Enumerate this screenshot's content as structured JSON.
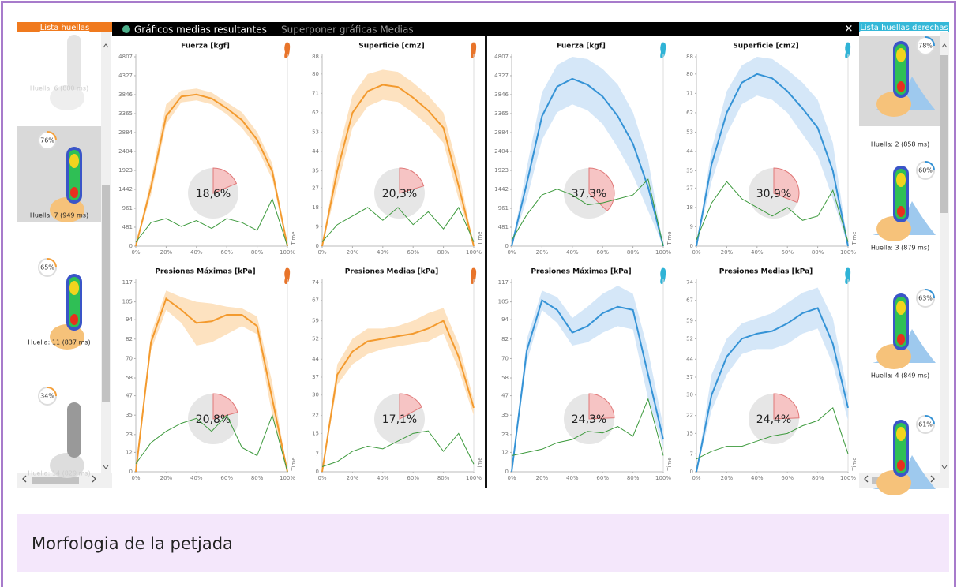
{
  "toolbar": {
    "title": "Gráficos medias resultantes",
    "option": "Superponer gráficas Medias",
    "close": "✕"
  },
  "left_panel": {
    "title": "Lista huellas",
    "items": [
      {
        "label": "Huella: 6 (880 ms)"
      },
      {
        "percent": "76%",
        "label": "Huella: 7 (949 ms)"
      },
      {
        "percent": "65%",
        "label": "Huella: 11 (837 ms)"
      },
      {
        "percent": "34%",
        "label": "Huella: 14 (829 ms)"
      }
    ]
  },
  "right_panel": {
    "title": "Lista huellas derechas",
    "items": [
      {
        "percent": "78%",
        "label": "Huella: 2 (858 ms)"
      },
      {
        "percent": "60%",
        "label": "Huella: 3 (879 ms)"
      },
      {
        "percent": "63%",
        "label": "Huella: 4 (849 ms)"
      },
      {
        "percent": "61%"
      }
    ]
  },
  "caption": "Morfologia de la petjada",
  "chart_data": [
    {
      "type": "line",
      "title": "Fuerza  [kgf]",
      "xlabel": "Time",
      "x": [
        0,
        10,
        20,
        30,
        40,
        50,
        60,
        70,
        80,
        90,
        100
      ],
      "xlim": [
        0,
        100
      ],
      "xticks": [
        {
          "value": 0,
          "label": "0%"
        },
        {
          "value": 20,
          "label": "20%"
        },
        {
          "value": 40,
          "label": "40%"
        },
        {
          "value": 60,
          "label": "60%"
        },
        {
          "value": 80,
          "label": "80%"
        },
        {
          "value": 100,
          "label": "100%"
        }
      ],
      "ylim": [
        0,
        4807
      ],
      "yticks": [
        0,
        481,
        961,
        1442,
        1923,
        2404,
        2884,
        3365,
        3846,
        4327,
        4807
      ],
      "band": {
        "color": "#fde2c0",
        "upper": [
          0,
          1700,
          3600,
          3950,
          4000,
          3900,
          3650,
          3400,
          2900,
          2100,
          0
        ],
        "lower": [
          0,
          1300,
          3100,
          3650,
          3700,
          3600,
          3350,
          3000,
          2500,
          1700,
          0
        ]
      },
      "series": [
        {
          "color": "#f39a2e",
          "values": [
            0,
            1500,
            3300,
            3800,
            3850,
            3750,
            3500,
            3200,
            2700,
            1900,
            0
          ]
        },
        {
          "color": "#3d9a3d",
          "values": [
            100,
            600,
            700,
            500,
            650,
            450,
            700,
            600,
            400,
            1200,
            0
          ]
        }
      ],
      "percent": {
        "value": 18.6,
        "label": "18,6%"
      },
      "foot_color": "#e8742a"
    },
    {
      "type": "line",
      "title": "Superficie  [cm2]",
      "xlabel": "Time",
      "x": [
        0,
        10,
        20,
        30,
        40,
        50,
        60,
        70,
        80,
        90,
        100
      ],
      "xlim": [
        0,
        100
      ],
      "xticks": [
        {
          "value": 0,
          "label": "0%"
        },
        {
          "value": 20,
          "label": "20%"
        },
        {
          "value": 40,
          "label": "40%"
        },
        {
          "value": 60,
          "label": "60%"
        },
        {
          "value": 80,
          "label": "80%"
        },
        {
          "value": 100,
          "label": "100%"
        }
      ],
      "ylim": [
        0,
        88
      ],
      "yticks": [
        0,
        9,
        18,
        27,
        35,
        44,
        53,
        62,
        71,
        80,
        88
      ],
      "band": {
        "color": "#fde2c0",
        "upper": [
          0,
          42,
          70,
          80,
          82,
          81,
          76,
          70,
          62,
          35,
          0
        ],
        "lower": [
          0,
          28,
          55,
          65,
          68,
          67,
          62,
          56,
          48,
          22,
          0
        ]
      },
      "series": [
        {
          "color": "#f39a2e",
          "values": [
            0,
            35,
            62,
            72,
            75,
            74,
            69,
            63,
            55,
            28,
            0
          ]
        },
        {
          "color": "#3d9a3d",
          "values": [
            2,
            10,
            14,
            18,
            12,
            18,
            10,
            16,
            8,
            18,
            2
          ]
        }
      ],
      "percent": {
        "value": 20.3,
        "label": "20,3%"
      },
      "foot_color": "#e8742a"
    },
    {
      "type": "line",
      "title": "Fuerza  [kgf]",
      "xlabel": "Time",
      "x": [
        0,
        10,
        20,
        30,
        40,
        50,
        60,
        70,
        80,
        90,
        100
      ],
      "xlim": [
        0,
        100
      ],
      "xticks": [
        {
          "value": 0,
          "label": "0%"
        },
        {
          "value": 20,
          "label": "20%"
        },
        {
          "value": 40,
          "label": "40%"
        },
        {
          "value": 60,
          "label": "60%"
        },
        {
          "value": 80,
          "label": "80%"
        },
        {
          "value": 100,
          "label": "100%"
        }
      ],
      "ylim": [
        0,
        4807
      ],
      "yticks": [
        0,
        481,
        961,
        1442,
        1923,
        2404,
        2884,
        3365,
        3846,
        4327,
        4807
      ],
      "band": {
        "color": "#d5e7f8",
        "upper": [
          0,
          2000,
          3900,
          4600,
          4807,
          4750,
          4500,
          4100,
          3400,
          2200,
          0
        ],
        "lower": [
          0,
          1200,
          2700,
          3400,
          3600,
          3450,
          3100,
          2500,
          1800,
          900,
          0
        ]
      },
      "series": [
        {
          "color": "#3593d6",
          "values": [
            0,
            1600,
            3300,
            4050,
            4250,
            4100,
            3800,
            3300,
            2600,
            1500,
            0
          ]
        },
        {
          "color": "#3d9a3d",
          "values": [
            150,
            800,
            1300,
            1450,
            1300,
            1050,
            1100,
            1200,
            1300,
            1700,
            0
          ]
        }
      ],
      "percent": {
        "value": 37.3,
        "label": "37,3%"
      },
      "foot_color": "#2fb3d6"
    },
    {
      "type": "line",
      "title": "Superficie  [cm2]",
      "xlabel": "Time",
      "x": [
        0,
        10,
        20,
        30,
        40,
        50,
        60,
        70,
        80,
        90,
        100
      ],
      "xlim": [
        0,
        100
      ],
      "xticks": [
        {
          "value": 0,
          "label": "0%"
        },
        {
          "value": 20,
          "label": "20%"
        },
        {
          "value": 40,
          "label": "40%"
        },
        {
          "value": 60,
          "label": "60%"
        },
        {
          "value": 80,
          "label": "80%"
        },
        {
          "value": 100,
          "label": "100%"
        }
      ],
      "ylim": [
        0,
        88
      ],
      "yticks": [
        0,
        9,
        18,
        27,
        35,
        44,
        53,
        62,
        71,
        80,
        88
      ],
      "band": {
        "color": "#d5e7f8",
        "upper": [
          0,
          45,
          72,
          84,
          88,
          87,
          82,
          76,
          68,
          48,
          0
        ],
        "lower": [
          0,
          30,
          52,
          66,
          70,
          68,
          62,
          52,
          42,
          22,
          0
        ]
      },
      "series": [
        {
          "color": "#3593d6",
          "values": [
            0,
            38,
            62,
            76,
            80,
            78,
            72,
            64,
            55,
            35,
            0
          ]
        },
        {
          "color": "#3d9a3d",
          "values": [
            3,
            20,
            30,
            22,
            18,
            14,
            18,
            12,
            14,
            26,
            2
          ]
        }
      ],
      "percent": {
        "value": 30.9,
        "label": "30,9%"
      },
      "foot_color": "#2fb3d6"
    },
    {
      "type": "line",
      "title": "Presiones Máximas  [kPa]",
      "xlabel": "Time",
      "x": [
        0,
        10,
        20,
        30,
        40,
        50,
        60,
        70,
        80,
        90,
        100
      ],
      "xlim": [
        0,
        100
      ],
      "xticks": [
        {
          "value": 0,
          "label": "0%"
        },
        {
          "value": 20,
          "label": "20%"
        },
        {
          "value": 40,
          "label": "40%"
        },
        {
          "value": 60,
          "label": "60%"
        },
        {
          "value": 80,
          "label": "80%"
        },
        {
          "value": 100,
          "label": "100%"
        }
      ],
      "ylim": [
        0,
        117
      ],
      "yticks": [
        0,
        12,
        23,
        35,
        47,
        58,
        70,
        82,
        94,
        105,
        117
      ],
      "band": {
        "color": "#fde2c0",
        "upper": [
          0,
          85,
          112,
          108,
          105,
          104,
          102,
          101,
          96,
          55,
          0
        ],
        "lower": [
          0,
          75,
          100,
          92,
          78,
          80,
          85,
          90,
          85,
          35,
          0
        ]
      },
      "series": [
        {
          "color": "#f39a2e",
          "values": [
            0,
            80,
            107,
            100,
            92,
            93,
            97,
            97,
            90,
            45,
            0
          ]
        },
        {
          "color": "#3d9a3d",
          "values": [
            5,
            18,
            25,
            30,
            33,
            25,
            35,
            15,
            10,
            35,
            0
          ]
        }
      ],
      "percent": {
        "value": 20.8,
        "label": "20,8%"
      },
      "foot_color": "#e8742a"
    },
    {
      "type": "line",
      "title": "Presiones Medias  [kPa]",
      "xlabel": "Time",
      "x": [
        0,
        10,
        20,
        30,
        40,
        50,
        60,
        70,
        80,
        90,
        100
      ],
      "xlim": [
        0,
        100
      ],
      "xticks": [
        {
          "value": 0,
          "label": "0%"
        },
        {
          "value": 20,
          "label": "20%"
        },
        {
          "value": 40,
          "label": "40%"
        },
        {
          "value": 60,
          "label": "60%"
        },
        {
          "value": 80,
          "label": "80%"
        },
        {
          "value": 100,
          "label": "100%"
        }
      ],
      "ylim": [
        0,
        74
      ],
      "yticks": [
        0,
        7,
        15,
        22,
        30,
        37,
        44,
        52,
        59,
        67,
        74
      ],
      "band": {
        "color": "#fde2c0",
        "upper": [
          0,
          42,
          52,
          56,
          56,
          57,
          59,
          62,
          64,
          50,
          28
        ],
        "lower": [
          0,
          34,
          42,
          46,
          48,
          49,
          50,
          51,
          54,
          40,
          22
        ]
      },
      "series": [
        {
          "color": "#f39a2e",
          "values": [
            0,
            38,
            47,
            51,
            52,
            53,
            54,
            56,
            59,
            45,
            25
          ]
        },
        {
          "color": "#3d9a3d",
          "values": [
            2,
            4,
            8,
            10,
            9,
            12,
            15,
            16,
            8,
            15,
            3
          ]
        }
      ],
      "percent": {
        "value": 17.1,
        "label": "17,1%"
      },
      "foot_color": "#e8742a"
    },
    {
      "type": "line",
      "title": "Presiones Máximas  [kPa]",
      "xlabel": "Time",
      "x": [
        0,
        10,
        20,
        30,
        40,
        50,
        60,
        70,
        80,
        90,
        100
      ],
      "xlim": [
        0,
        100
      ],
      "xticks": [
        {
          "value": 0,
          "label": "0%"
        },
        {
          "value": 20,
          "label": "20%"
        },
        {
          "value": 40,
          "label": "40%"
        },
        {
          "value": 60,
          "label": "60%"
        },
        {
          "value": 80,
          "label": "80%"
        },
        {
          "value": 100,
          "label": "100%"
        }
      ],
      "ylim": [
        0,
        117
      ],
      "yticks": [
        0,
        12,
        23,
        35,
        47,
        58,
        70,
        82,
        94,
        105,
        117
      ],
      "band": {
        "color": "#d5e7f8",
        "upper": [
          0,
          82,
          112,
          108,
          95,
          102,
          110,
          115,
          110,
          75,
          28
        ],
        "lower": [
          0,
          68,
          100,
          92,
          78,
          80,
          86,
          90,
          88,
          45,
          15
        ]
      },
      "series": [
        {
          "color": "#3593d6",
          "values": [
            0,
            75,
            106,
            100,
            86,
            90,
            98,
            102,
            100,
            60,
            20
          ]
        },
        {
          "color": "#3d9a3d",
          "values": [
            10,
            12,
            14,
            18,
            20,
            25,
            24,
            28,
            22,
            45,
            10
          ]
        }
      ],
      "percent": {
        "value": 24.3,
        "label": "24,3%"
      },
      "foot_color": "#2fb3d6"
    },
    {
      "type": "line",
      "title": "Presiones Medias  [kPa]",
      "xlabel": "Time",
      "x": [
        0,
        10,
        20,
        30,
        40,
        50,
        60,
        70,
        80,
        90,
        100
      ],
      "xlim": [
        0,
        100
      ],
      "xticks": [
        {
          "value": 0,
          "label": "0%"
        },
        {
          "value": 20,
          "label": "20%"
        },
        {
          "value": 40,
          "label": "40%"
        },
        {
          "value": 60,
          "label": "60%"
        },
        {
          "value": 80,
          "label": "80%"
        },
        {
          "value": 100,
          "label": "100%"
        }
      ],
      "ylim": [
        0,
        74
      ],
      "yticks": [
        0,
        7,
        15,
        22,
        30,
        37,
        44,
        52,
        59,
        67,
        74
      ],
      "band": {
        "color": "#d5e7f8",
        "upper": [
          0,
          38,
          52,
          58,
          60,
          62,
          66,
          70,
          72,
          60,
          30
        ],
        "lower": [
          0,
          24,
          38,
          46,
          48,
          48,
          50,
          54,
          56,
          42,
          20
        ]
      },
      "series": [
        {
          "color": "#3593d6",
          "values": [
            0,
            30,
            45,
            52,
            54,
            55,
            58,
            62,
            64,
            50,
            25
          ]
        },
        {
          "color": "#3d9a3d",
          "values": [
            5,
            8,
            10,
            10,
            12,
            14,
            15,
            18,
            20,
            25,
            7
          ]
        }
      ],
      "percent": {
        "value": 24.4,
        "label": "24,4%"
      },
      "foot_color": "#2fb3d6"
    }
  ]
}
